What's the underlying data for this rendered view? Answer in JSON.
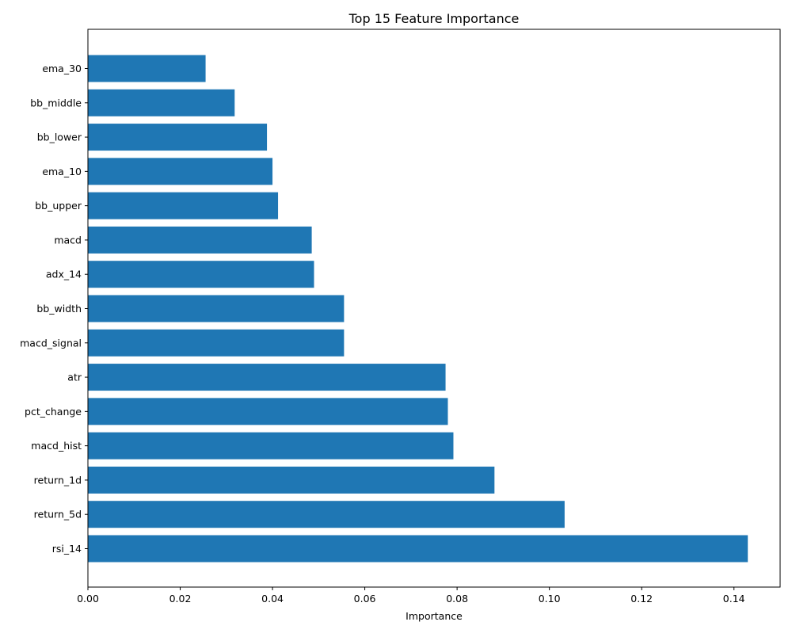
{
  "chart_data": {
    "type": "bar",
    "orientation": "horizontal",
    "title": "Top 15 Feature Importance",
    "xlabel": "Importance",
    "ylabel": "",
    "xlim": [
      0,
      0.15
    ],
    "xticks": [
      0.0,
      0.02,
      0.04,
      0.06,
      0.08,
      0.1,
      0.12,
      0.14
    ],
    "xtick_labels": [
      "0.00",
      "0.02",
      "0.04",
      "0.06",
      "0.08",
      "0.10",
      "0.12",
      "0.14"
    ],
    "grid": false,
    "legend": "none",
    "bar_color": "#1f77b4",
    "categories": [
      "rsi_14",
      "return_5d",
      "return_1d",
      "macd_hist",
      "pct_change",
      "atr",
      "macd_signal",
      "bb_width",
      "adx_14",
      "macd",
      "bb_upper",
      "ema_10",
      "bb_lower",
      "bb_middle",
      "ema_30"
    ],
    "values": [
      0.143,
      0.1033,
      0.0881,
      0.0792,
      0.078,
      0.0775,
      0.0555,
      0.0555,
      0.049,
      0.0485,
      0.0412,
      0.04,
      0.0388,
      0.0318,
      0.0255
    ]
  }
}
